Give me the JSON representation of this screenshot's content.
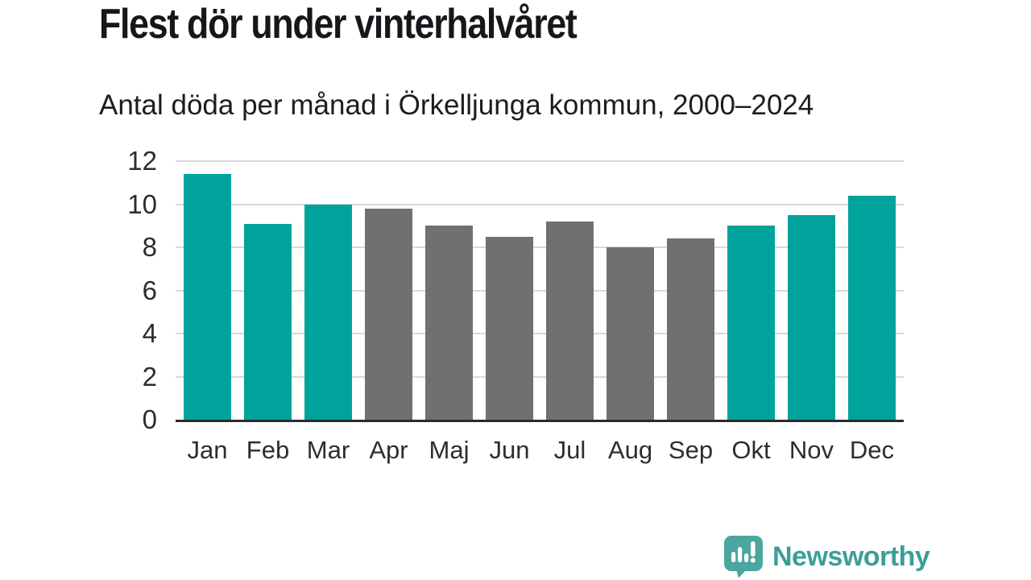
{
  "title": "Flest dör under vinterhalvåret",
  "subtitle": "Antal döda per månad i Örkelljunga kommun, 2000–2024",
  "branding": {
    "name": "Newsworthy",
    "icon": "newsworthy-speech-bubble-chart-icon",
    "text_color": "#3a9e97",
    "icon_color": "#4ba69f"
  },
  "colors": {
    "background": "#ffffff",
    "highlight_bar": "#00a39b",
    "neutral_bar": "#706f72",
    "gridline": "#d9d9d9",
    "baseline": "#2b2b2b",
    "axis_text": "#2d2c31",
    "title_text": "#17161b"
  },
  "chart_data": {
    "type": "bar",
    "title": "Flest dör under vinterhalvåret",
    "subtitle": "Antal döda per månad i Örkelljunga kommun, 2000–2024",
    "categories": [
      "Jan",
      "Feb",
      "Mar",
      "Apr",
      "Maj",
      "Jun",
      "Jul",
      "Aug",
      "Sep",
      "Okt",
      "Nov",
      "Dec"
    ],
    "values": [
      11.4,
      9.1,
      10.0,
      9.8,
      9.0,
      8.5,
      9.2,
      8.0,
      8.4,
      9.0,
      9.5,
      10.4
    ],
    "highlight_indices": [
      0,
      1,
      2,
      9,
      10,
      11
    ],
    "ylim": [
      0,
      12
    ],
    "yticks": [
      0,
      2,
      4,
      6,
      8,
      10,
      12
    ],
    "grid": true,
    "legend": false,
    "xlabel": "",
    "ylabel": ""
  }
}
